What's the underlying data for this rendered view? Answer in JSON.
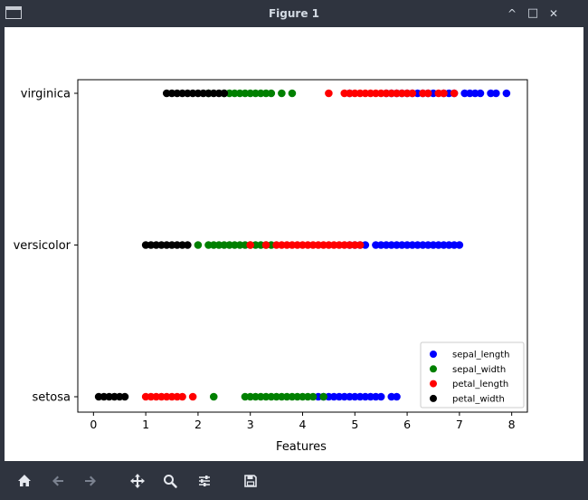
{
  "window": {
    "title": "Figure 1",
    "controls": {
      "minimize": "^",
      "maximize": "□",
      "close": "✕"
    }
  },
  "toolbar": {
    "buttons": [
      {
        "name": "home-icon"
      },
      {
        "name": "back-arrow-icon"
      },
      {
        "name": "forward-arrow-icon"
      },
      {
        "name": "pan-icon"
      },
      {
        "name": "zoom-icon"
      },
      {
        "name": "configure-subplots-icon"
      },
      {
        "name": "save-icon"
      }
    ]
  },
  "chart_data": {
    "type": "scatter",
    "title": "",
    "xlabel": "Features",
    "ylabel": "",
    "xlim": [
      -0.3,
      8.3
    ],
    "xticks": [
      0,
      1,
      2,
      3,
      4,
      5,
      6,
      7,
      8
    ],
    "categories": [
      "setosa",
      "versicolor",
      "virginica"
    ],
    "legend_position": "lower right",
    "series": [
      {
        "name": "sepal_length",
        "color": "#0000ff",
        "points": {
          "setosa": [
            4.3,
            4.4,
            4.5,
            4.6,
            4.7,
            4.8,
            4.9,
            5.0,
            5.1,
            5.2,
            5.3,
            5.4,
            5.5,
            5.7,
            5.8
          ],
          "versicolor": [
            4.9,
            5.0,
            5.1,
            5.2,
            5.4,
            5.5,
            5.6,
            5.7,
            5.8,
            5.9,
            6.0,
            6.1,
            6.2,
            6.3,
            6.4,
            6.5,
            6.6,
            6.7,
            6.8,
            6.9,
            7.0
          ],
          "virginica": [
            4.9,
            5.6,
            5.7,
            5.8,
            5.9,
            6.0,
            6.1,
            6.2,
            6.3,
            6.4,
            6.5,
            6.7,
            6.8,
            6.9,
            7.1,
            7.2,
            7.3,
            7.4,
            7.6,
            7.7,
            7.9
          ]
        }
      },
      {
        "name": "sepal_width",
        "color": "#008000",
        "points": {
          "setosa": [
            2.3,
            2.9,
            3.0,
            3.1,
            3.2,
            3.3,
            3.4,
            3.5,
            3.6,
            3.7,
            3.8,
            3.9,
            4.0,
            4.1,
            4.2,
            4.4
          ],
          "versicolor": [
            2.0,
            2.2,
            2.3,
            2.4,
            2.5,
            2.6,
            2.7,
            2.8,
            2.9,
            3.0,
            3.1,
            3.2,
            3.3,
            3.4
          ],
          "virginica": [
            2.2,
            2.5,
            2.6,
            2.7,
            2.8,
            2.9,
            3.0,
            3.1,
            3.2,
            3.3,
            3.4,
            3.6,
            3.8
          ]
        }
      },
      {
        "name": "petal_length",
        "color": "#ff0000",
        "points": {
          "setosa": [
            1.0,
            1.1,
            1.2,
            1.3,
            1.4,
            1.5,
            1.6,
            1.7,
            1.9
          ],
          "versicolor": [
            3.0,
            3.3,
            3.5,
            3.6,
            3.7,
            3.8,
            3.9,
            4.0,
            4.1,
            4.2,
            4.3,
            4.4,
            4.5,
            4.6,
            4.7,
            4.8,
            4.9,
            5.0,
            5.1
          ],
          "virginica": [
            4.5,
            4.8,
            4.9,
            5.0,
            5.1,
            5.2,
            5.3,
            5.4,
            5.5,
            5.6,
            5.7,
            5.8,
            5.9,
            6.0,
            6.1,
            6.3,
            6.4,
            6.6,
            6.7,
            6.9
          ]
        }
      },
      {
        "name": "petal_width",
        "color": "#000000",
        "points": {
          "setosa": [
            0.1,
            0.2,
            0.3,
            0.4,
            0.5,
            0.6
          ],
          "versicolor": [
            1.0,
            1.1,
            1.2,
            1.3,
            1.4,
            1.5,
            1.6,
            1.7,
            1.8
          ],
          "virginica": [
            1.4,
            1.5,
            1.6,
            1.7,
            1.8,
            1.9,
            2.0,
            2.1,
            2.2,
            2.3,
            2.4,
            2.5
          ]
        }
      }
    ]
  }
}
